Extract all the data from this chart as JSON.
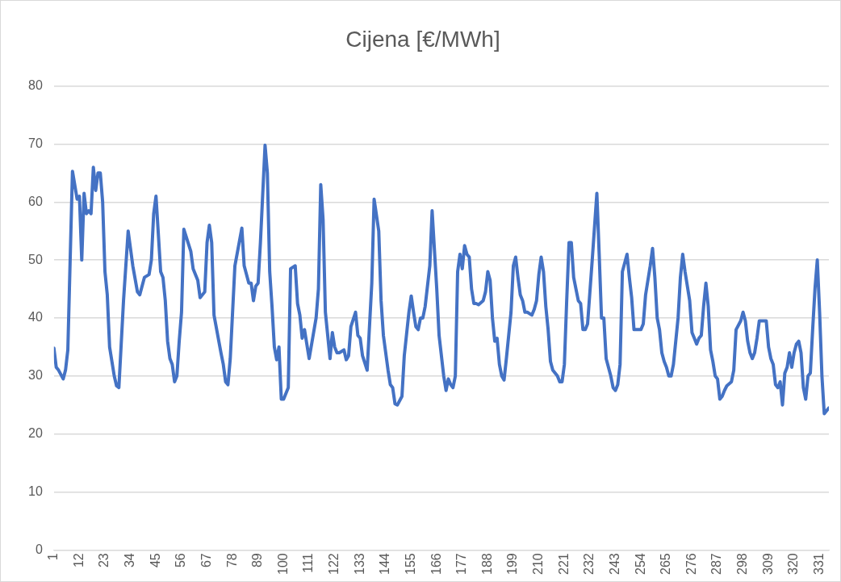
{
  "chart_data": {
    "type": "line",
    "title": "Cijena [€/MWh]",
    "color": "#4472c4",
    "marker": "none",
    "grid": "y",
    "legend": false,
    "x": [
      1,
      2,
      3,
      5,
      6,
      7,
      8,
      9,
      11,
      12,
      13,
      14,
      15,
      16,
      17,
      18,
      19,
      20,
      21,
      22,
      23,
      24,
      25,
      27,
      28,
      29,
      31,
      33,
      35,
      37,
      38,
      40,
      42,
      43,
      44,
      45,
      47,
      48,
      49,
      50,
      51,
      52,
      53,
      54,
      55,
      56,
      57,
      60,
      61,
      63,
      64,
      66,
      67,
      68,
      69,
      70,
      73,
      74,
      75,
      76,
      77,
      79,
      82,
      83,
      84,
      85,
      86,
      87,
      88,
      89,
      90,
      92,
      93,
      94,
      95,
      96,
      97,
      98,
      99,
      100,
      102,
      103,
      105,
      106,
      107,
      108,
      109,
      111,
      114,
      115,
      116,
      117,
      118,
      119,
      120,
      121,
      122,
      123,
      124,
      126,
      127,
      128,
      129,
      131,
      132,
      133,
      134,
      136,
      138,
      139,
      141,
      142,
      143,
      145,
      146,
      147,
      148,
      149,
      151,
      152,
      154,
      155,
      156,
      157,
      158,
      159,
      160,
      161,
      163,
      164,
      166,
      167,
      169,
      170,
      171,
      172,
      173,
      174,
      175,
      176,
      177,
      178,
      179,
      180,
      181,
      182,
      183,
      184,
      186,
      187,
      188,
      189,
      190,
      191,
      192,
      193,
      194,
      195,
      196,
      198,
      199,
      200,
      201,
      202,
      203,
      204,
      205,
      207,
      208,
      209,
      210,
      211,
      212,
      213,
      214,
      215,
      216,
      218,
      219,
      220,
      221,
      222,
      223,
      224,
      225,
      226,
      227,
      228,
      229,
      230,
      231,
      233,
      235,
      236,
      237,
      238,
      239,
      240,
      241,
      242,
      243,
      244,
      245,
      246,
      248,
      249,
      250,
      251,
      252,
      254,
      255,
      256,
      258,
      259,
      260,
      261,
      262,
      263,
      264,
      265,
      266,
      267,
      268,
      270,
      271,
      272,
      273,
      275,
      276,
      277,
      278,
      279,
      280,
      281,
      282,
      283,
      284,
      285,
      286,
      287,
      288,
      289,
      290,
      291,
      293,
      294,
      295,
      297,
      298,
      299,
      300,
      301,
      302,
      303,
      304,
      305,
      306,
      307,
      308,
      309,
      310,
      311,
      312,
      313,
      314,
      315,
      316,
      317,
      318,
      319,
      320,
      321,
      322,
      323,
      324,
      325,
      326,
      327,
      328,
      329,
      330,
      331,
      332,
      333,
      335
    ],
    "values": [
      34.8,
      31.5,
      31,
      29.5,
      31,
      34.5,
      50,
      65.3,
      60.5,
      61,
      50,
      61.5,
      58,
      58.5,
      58,
      66,
      62,
      65,
      65,
      60,
      48,
      44,
      35,
      30,
      28.3,
      28,
      43,
      55,
      49,
      44.5,
      44,
      47,
      47.5,
      50,
      58,
      61,
      48,
      47,
      43,
      36,
      33,
      32,
      29,
      30,
      36,
      41,
      55.3,
      51.5,
      48.5,
      46.5,
      43.5,
      44.5,
      53,
      56,
      53,
      40.5,
      34,
      32,
      29,
      28.5,
      33,
      49,
      55.5,
      49,
      47.5,
      46,
      46,
      43,
      45.5,
      46,
      53,
      69.8,
      65,
      48,
      42,
      35,
      32.8,
      35,
      26,
      26,
      28,
      48.5,
      49,
      42.5,
      40.5,
      36.5,
      38,
      33,
      40,
      45,
      63,
      57,
      41,
      37,
      33,
      37.5,
      35,
      34,
      34,
      34.5,
      32.8,
      33.5,
      38.5,
      41,
      37,
      36.5,
      33.5,
      31,
      46,
      60.5,
      55,
      43,
      37,
      31,
      28.5,
      28,
      25.2,
      25,
      26.5,
      33.5,
      41,
      43.8,
      41,
      38.5,
      38,
      40,
      40,
      42,
      49,
      58.5,
      45,
      37,
      30,
      27.5,
      29.5,
      28.5,
      28,
      30,
      48,
      51,
      48.5,
      52.5,
      51,
      50.5,
      45,
      42.5,
      42.5,
      42.3,
      43,
      44.5,
      48,
      46.5,
      40,
      36,
      36.5,
      32,
      30,
      29.3,
      33,
      41,
      49,
      50.5,
      47,
      44,
      43,
      41,
      41,
      40.5,
      41.5,
      43,
      47.5,
      50.5,
      48,
      42,
      38,
      32.5,
      31,
      30,
      29,
      29,
      32,
      43,
      53,
      53,
      47,
      45,
      43,
      42.5,
      38,
      38,
      39,
      50,
      61.5,
      51,
      40,
      40,
      33,
      31.5,
      30,
      28,
      27.5,
      28.5,
      32,
      48,
      51,
      47,
      43.5,
      38,
      38,
      38,
      39,
      44,
      49,
      52,
      47,
      40,
      38,
      34,
      32.5,
      31.5,
      30,
      30,
      32,
      40,
      47,
      51,
      48,
      43,
      37.5,
      36.5,
      35.5,
      36.5,
      37,
      42,
      46,
      42,
      34.5,
      32.5,
      30,
      29.5,
      26,
      26.5,
      27.5,
      28.3,
      29,
      31,
      38,
      39.5,
      41,
      39.5,
      36,
      34,
      33,
      34,
      36.5,
      39.5,
      39.5,
      39.5,
      39.5,
      35,
      33,
      32,
      28.5,
      28,
      29,
      25,
      30.5,
      31.5,
      34,
      31.5,
      34,
      35.5,
      36,
      34,
      28,
      26,
      30,
      30.5,
      38,
      45,
      50,
      41,
      30,
      23.5,
      24.5
    ],
    "xlim": [
      1,
      335
    ],
    "xticks": [
      1,
      12,
      23,
      34,
      45,
      56,
      67,
      78,
      89,
      100,
      111,
      122,
      133,
      144,
      155,
      166,
      177,
      188,
      199,
      210,
      221,
      232,
      243,
      254,
      265,
      276,
      287,
      298,
      309,
      320,
      331
    ],
    "ylim": [
      0,
      80
    ],
    "yticks": [
      0,
      10,
      20,
      30,
      40,
      50,
      60,
      70,
      80
    ]
  }
}
